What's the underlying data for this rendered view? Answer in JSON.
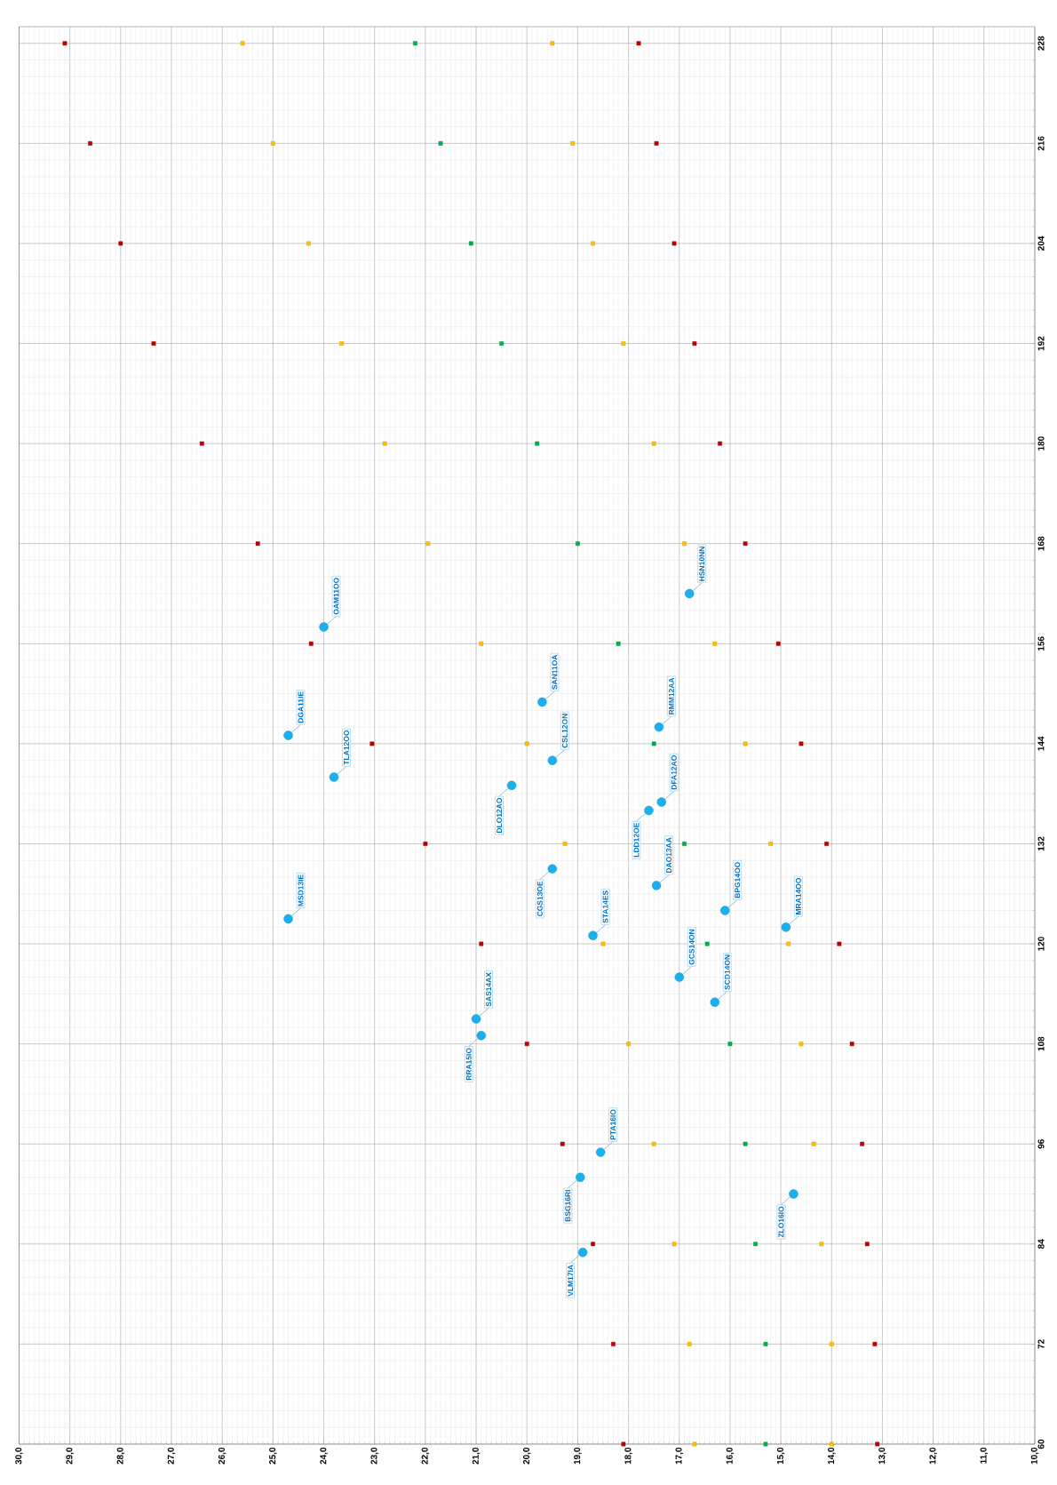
{
  "chart_data": {
    "type": "scatter",
    "xlim": [
      30,
      10
    ],
    "ylim": [
      60,
      230
    ],
    "xticks": [
      {
        "value": 30,
        "label": "30,0"
      },
      {
        "value": 29,
        "label": "29,0"
      },
      {
        "value": 28,
        "label": "28,0"
      },
      {
        "value": 27,
        "label": "27,0"
      },
      {
        "value": 26,
        "label": "26,0"
      },
      {
        "value": 25,
        "label": "25,0"
      },
      {
        "value": 24,
        "label": "24,0"
      },
      {
        "value": 23,
        "label": "23,0"
      },
      {
        "value": 22,
        "label": "22,0"
      },
      {
        "value": 21,
        "label": "21,0"
      },
      {
        "value": 20,
        "label": "20,0"
      },
      {
        "value": 19,
        "label": "19,0"
      },
      {
        "value": 18,
        "label": "18,0"
      },
      {
        "value": 17,
        "label": "17,0"
      },
      {
        "value": 16,
        "label": "16,0"
      },
      {
        "value": 15,
        "label": "15,0"
      },
      {
        "value": 14,
        "label": "14,0"
      },
      {
        "value": 13,
        "label": "13,0"
      },
      {
        "value": 12,
        "label": "12,0"
      },
      {
        "value": 11,
        "label": "11,0"
      },
      {
        "value": 10,
        "label": "10,0"
      }
    ],
    "yticks": [
      60,
      72,
      84,
      96,
      108,
      120,
      132,
      144,
      156,
      168,
      180,
      192,
      204,
      216,
      228
    ],
    "grid": true,
    "marker": "square",
    "series": [
      {
        "color": "#c00000",
        "x": [
          18.1,
          18.3,
          18.7,
          19.3,
          20.0,
          20.9,
          22.0,
          23.05,
          24.25,
          25.3,
          26.4,
          27.35,
          28.0,
          28.6,
          29.1
        ],
        "values": [
          60,
          72,
          84,
          96,
          108,
          120,
          132,
          144,
          156,
          168,
          180,
          192,
          204,
          216,
          228
        ]
      },
      {
        "color": "#ffc000",
        "x": [
          16.7,
          16.8,
          17.1,
          17.5,
          18.0,
          18.5,
          19.25,
          20.0,
          20.9,
          21.95,
          22.8,
          23.65,
          24.3,
          25.0,
          25.6
        ],
        "values": [
          60,
          72,
          84,
          96,
          108,
          120,
          132,
          144,
          156,
          168,
          180,
          192,
          204,
          216,
          228
        ]
      },
      {
        "color": "#00b050",
        "x": [
          15.3,
          15.3,
          15.5,
          15.7,
          16.0,
          16.45,
          16.9,
          17.5,
          18.2,
          19.0,
          19.8,
          20.5,
          21.1,
          21.7,
          22.2
        ],
        "values": [
          60,
          72,
          84,
          96,
          108,
          120,
          132,
          144,
          156,
          168,
          180,
          192,
          204,
          216,
          228
        ]
      },
      {
        "color": "#ffc000",
        "x": [
          14.0,
          14.0,
          14.2,
          14.35,
          14.6,
          14.85,
          15.2,
          15.7,
          16.3,
          16.9,
          17.5,
          18.1,
          18.7,
          19.1,
          19.5
        ],
        "values": [
          60,
          72,
          84,
          96,
          108,
          120,
          132,
          144,
          156,
          168,
          180,
          192,
          204,
          216,
          228
        ]
      },
      {
        "color": "#c00000",
        "x": [
          13.1,
          13.15,
          13.3,
          13.4,
          13.6,
          13.85,
          14.1,
          14.6,
          15.05,
          15.7,
          16.2,
          16.7,
          17.1,
          17.45,
          17.8
        ],
        "values": [
          60,
          72,
          84,
          96,
          108,
          120,
          132,
          144,
          156,
          168,
          180,
          192,
          204,
          216,
          228
        ]
      },
      {
        "color": "#1ab0ef",
        "marker": "circle",
        "x": [
          24.0,
          24.7,
          19.7,
          17.4,
          16.8,
          23.8,
          19.5,
          20.3,
          17.35,
          17.6,
          19.5,
          17.45,
          24.7,
          16.1,
          14.9,
          18.7,
          17.0,
          16.3,
          21.0,
          20.9,
          18.55,
          18.95,
          14.75,
          18.9
        ],
        "values": [
          158,
          145,
          149,
          146,
          162,
          140,
          142,
          139,
          137,
          136,
          129,
          127,
          123,
          124,
          122,
          121,
          116,
          113,
          111,
          109,
          95,
          92,
          90,
          83
        ]
      }
    ],
    "annotations": [
      {
        "text": "OAM11OO",
        "x": 24.0,
        "y": 158
      },
      {
        "text": "DGA11IE",
        "x": 24.7,
        "y": 145
      },
      {
        "text": "SAN11OA",
        "x": 19.7,
        "y": 149
      },
      {
        "text": "RMM12AA",
        "x": 17.4,
        "y": 146
      },
      {
        "text": "HSN10NN",
        "x": 16.8,
        "y": 162
      },
      {
        "text": "TLA12OO",
        "x": 23.8,
        "y": 140
      },
      {
        "text": "CSL12ON",
        "x": 19.5,
        "y": 142
      },
      {
        "text": "DLO12AO",
        "x": 20.3,
        "y": 139
      },
      {
        "text": "DFA12AO",
        "x": 17.35,
        "y": 137
      },
      {
        "text": "LDD12OE",
        "x": 17.6,
        "y": 136
      },
      {
        "text": "CGS13OE",
        "x": 19.5,
        "y": 129
      },
      {
        "text": "DAO13AA",
        "x": 17.45,
        "y": 127
      },
      {
        "text": "MSD13IE",
        "x": 24.7,
        "y": 123
      },
      {
        "text": "BPG14OO",
        "x": 16.1,
        "y": 124
      },
      {
        "text": "MRA14OO",
        "x": 14.9,
        "y": 122
      },
      {
        "text": "STA14ES",
        "x": 18.7,
        "y": 121
      },
      {
        "text": "GCS14ON",
        "x": 17.0,
        "y": 116
      },
      {
        "text": "SCD14ON",
        "x": 16.3,
        "y": 113
      },
      {
        "text": "SAS14AX",
        "x": 21.0,
        "y": 111
      },
      {
        "text": "RRA15IO",
        "x": 20.9,
        "y": 109
      },
      {
        "text": "PTA16IO",
        "x": 18.55,
        "y": 95
      },
      {
        "text": "BSG16RI",
        "x": 18.95,
        "y": 92
      },
      {
        "text": "ZLO16IO",
        "x": 14.75,
        "y": 90
      },
      {
        "text": "VLM17IA",
        "x": 18.9,
        "y": 83
      }
    ]
  }
}
